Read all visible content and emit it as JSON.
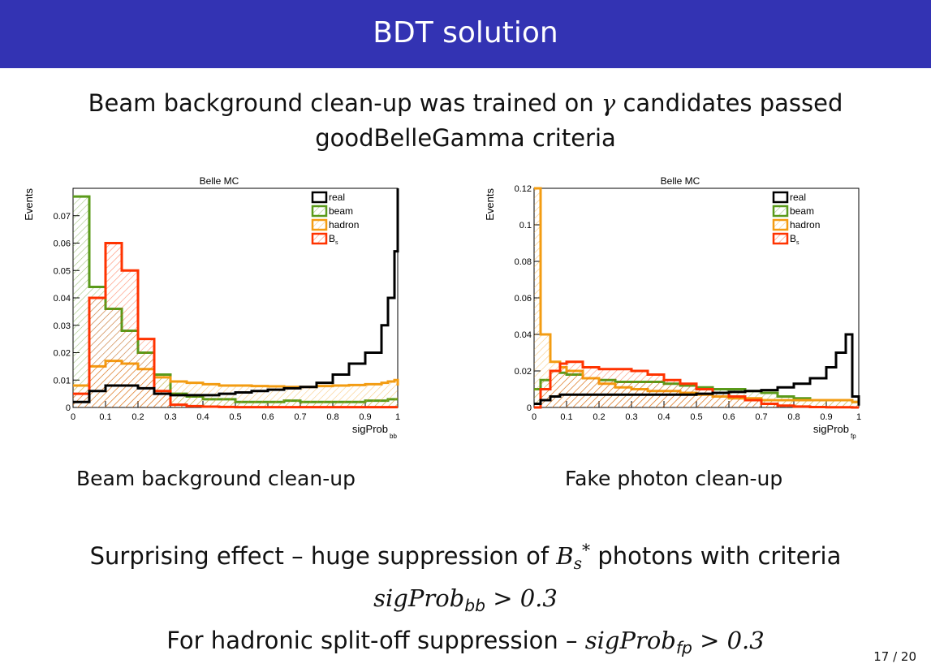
{
  "slide": {
    "title": "BDT solution",
    "intro_line1_a": "Beam background clean-up was trained on ",
    "intro_gamma": "γ",
    "intro_line1_b": " candidates passed",
    "intro_line2": "goodBelleGamma criteria",
    "caption_left": "Beam background clean-up",
    "caption_right": "Fake photon clean-up",
    "bottom_line1_a": "Surprising effect – huge suppression of ",
    "bottom_B": "B",
    "bottom_s": "s",
    "bottom_star": "*",
    "bottom_line1_b": " photons with criteria",
    "bottom_line2_base": "sigProb",
    "bottom_line2_sub": "bb",
    "bottom_line2_rest": " > 0.3",
    "bottom_line3_a": "For hadronic split-off suppression – ",
    "bottom_line3_base": "sigProb",
    "bottom_line3_sub": "fp",
    "bottom_line3_rest": " > 0.3",
    "page_number": "17 / 20"
  },
  "chart_data": [
    {
      "type": "line",
      "title": "Belle MC",
      "ylabel": "Events",
      "xlabel_base": "sigProb",
      "xlabel_sub": "bb",
      "xlim": [
        0,
        1
      ],
      "ylim": [
        0,
        0.08
      ],
      "x_ticks": [
        "0",
        "0.1",
        "0.2",
        "0.3",
        "0.4",
        "0.5",
        "0.6",
        "0.7",
        "0.8",
        "0.9",
        "1"
      ],
      "y_ticks": [
        "0",
        "0.01",
        "0.02",
        "0.03",
        "0.04",
        "0.05",
        "0.06",
        "0.07"
      ],
      "legend_position": "top-right",
      "x": [
        0,
        0.05,
        0.1,
        0.15,
        0.2,
        0.25,
        0.3,
        0.35,
        0.4,
        0.45,
        0.5,
        0.55,
        0.6,
        0.65,
        0.7,
        0.75,
        0.8,
        0.85,
        0.9,
        0.95,
        0.97,
        0.99,
        1.0
      ],
      "series": [
        {
          "name": "real",
          "color": "#000000",
          "fill": "none",
          "values": [
            0.002,
            0.006,
            0.008,
            0.008,
            0.007,
            0.005,
            0.0045,
            0.0045,
            0.0045,
            0.005,
            0.0055,
            0.006,
            0.0065,
            0.007,
            0.0075,
            0.009,
            0.012,
            0.016,
            0.02,
            0.03,
            0.04,
            0.057,
            0.08
          ]
        },
        {
          "name": "beam",
          "color": "#5a9a1a",
          "fill": "hatch",
          "values": [
            0.077,
            0.044,
            0.036,
            0.028,
            0.02,
            0.012,
            0.005,
            0.004,
            0.003,
            0.003,
            0.002,
            0.002,
            0.002,
            0.0025,
            0.002,
            0.002,
            0.002,
            0.002,
            0.0025,
            0.0025,
            0.003,
            0.003,
            0.003
          ]
        },
        {
          "name": "hadron",
          "color": "#f39c12",
          "fill": "hatch",
          "values": [
            0.008,
            0.015,
            0.017,
            0.016,
            0.014,
            0.011,
            0.0095,
            0.009,
            0.0085,
            0.008,
            0.008,
            0.0078,
            0.0077,
            0.0075,
            0.0075,
            0.0078,
            0.008,
            0.0082,
            0.0085,
            0.009,
            0.0095,
            0.01,
            0.008
          ]
        },
        {
          "name": "Bs",
          "color": "#ff3300",
          "fill": "hatch",
          "values": [
            0.005,
            0.04,
            0.06,
            0.05,
            0.025,
            0.006,
            0.001,
            0.0005,
            0.0003,
            0.0002,
            0.0001,
            0.0001,
            0.0001,
            0.0001,
            0.0001,
            0.0001,
            0.0001,
            0.0001,
            0.0001,
            0.0001,
            0.0001,
            0.0001,
            0.0001
          ]
        }
      ]
    },
    {
      "type": "line",
      "title": "Belle MC",
      "ylabel": "Events",
      "xlabel_base": "sigProb",
      "xlabel_sub": "fp",
      "xlim": [
        0,
        1
      ],
      "ylim": [
        0,
        0.12
      ],
      "x_ticks": [
        "0",
        "0.1",
        "0.2",
        "0.3",
        "0.4",
        "0.5",
        "0.6",
        "0.7",
        "0.8",
        "0.9",
        "1"
      ],
      "y_ticks": [
        "0",
        "0.02",
        "0.04",
        "0.06",
        "0.08",
        "0.1",
        "0.12"
      ],
      "legend_position": "top-right",
      "x": [
        0,
        0.02,
        0.05,
        0.08,
        0.1,
        0.15,
        0.2,
        0.25,
        0.3,
        0.35,
        0.4,
        0.45,
        0.5,
        0.55,
        0.6,
        0.65,
        0.7,
        0.75,
        0.8,
        0.85,
        0.9,
        0.93,
        0.96,
        0.98,
        1.0
      ],
      "series": [
        {
          "name": "real",
          "color": "#000000",
          "fill": "none",
          "values": [
            0.002,
            0.004,
            0.006,
            0.007,
            0.007,
            0.007,
            0.007,
            0.007,
            0.007,
            0.007,
            0.007,
            0.007,
            0.0075,
            0.008,
            0.0085,
            0.009,
            0.0095,
            0.011,
            0.013,
            0.016,
            0.022,
            0.03,
            0.04,
            0.006,
            0.001
          ]
        },
        {
          "name": "beam",
          "color": "#5a9a1a",
          "fill": "hatch",
          "values": [
            0.01,
            0.015,
            0.02,
            0.019,
            0.018,
            0.016,
            0.015,
            0.014,
            0.014,
            0.014,
            0.013,
            0.012,
            0.011,
            0.01,
            0.01,
            0.009,
            0.008,
            0.006,
            0.005,
            0.004,
            0.004,
            0.004,
            0.004,
            0.003,
            0.003
          ]
        },
        {
          "name": "hadron",
          "color": "#f39c12",
          "fill": "hatch",
          "values": [
            0.12,
            0.04,
            0.025,
            0.022,
            0.02,
            0.016,
            0.013,
            0.011,
            0.01,
            0.009,
            0.009,
            0.008,
            0.007,
            0.006,
            0.005,
            0.005,
            0.004,
            0.004,
            0.004,
            0.004,
            0.004,
            0.004,
            0.004,
            0.003,
            0.003
          ]
        },
        {
          "name": "Bs",
          "color": "#ff3300",
          "fill": "hatch",
          "values": [
            0.0,
            0.01,
            0.02,
            0.024,
            0.025,
            0.022,
            0.021,
            0.021,
            0.02,
            0.018,
            0.015,
            0.013,
            0.01,
            0.008,
            0.006,
            0.004,
            0.002,
            0.001,
            0.0005,
            0.0002,
            0.0001,
            0.0001,
            0.0001,
            0.0,
            0.0
          ]
        }
      ]
    }
  ]
}
